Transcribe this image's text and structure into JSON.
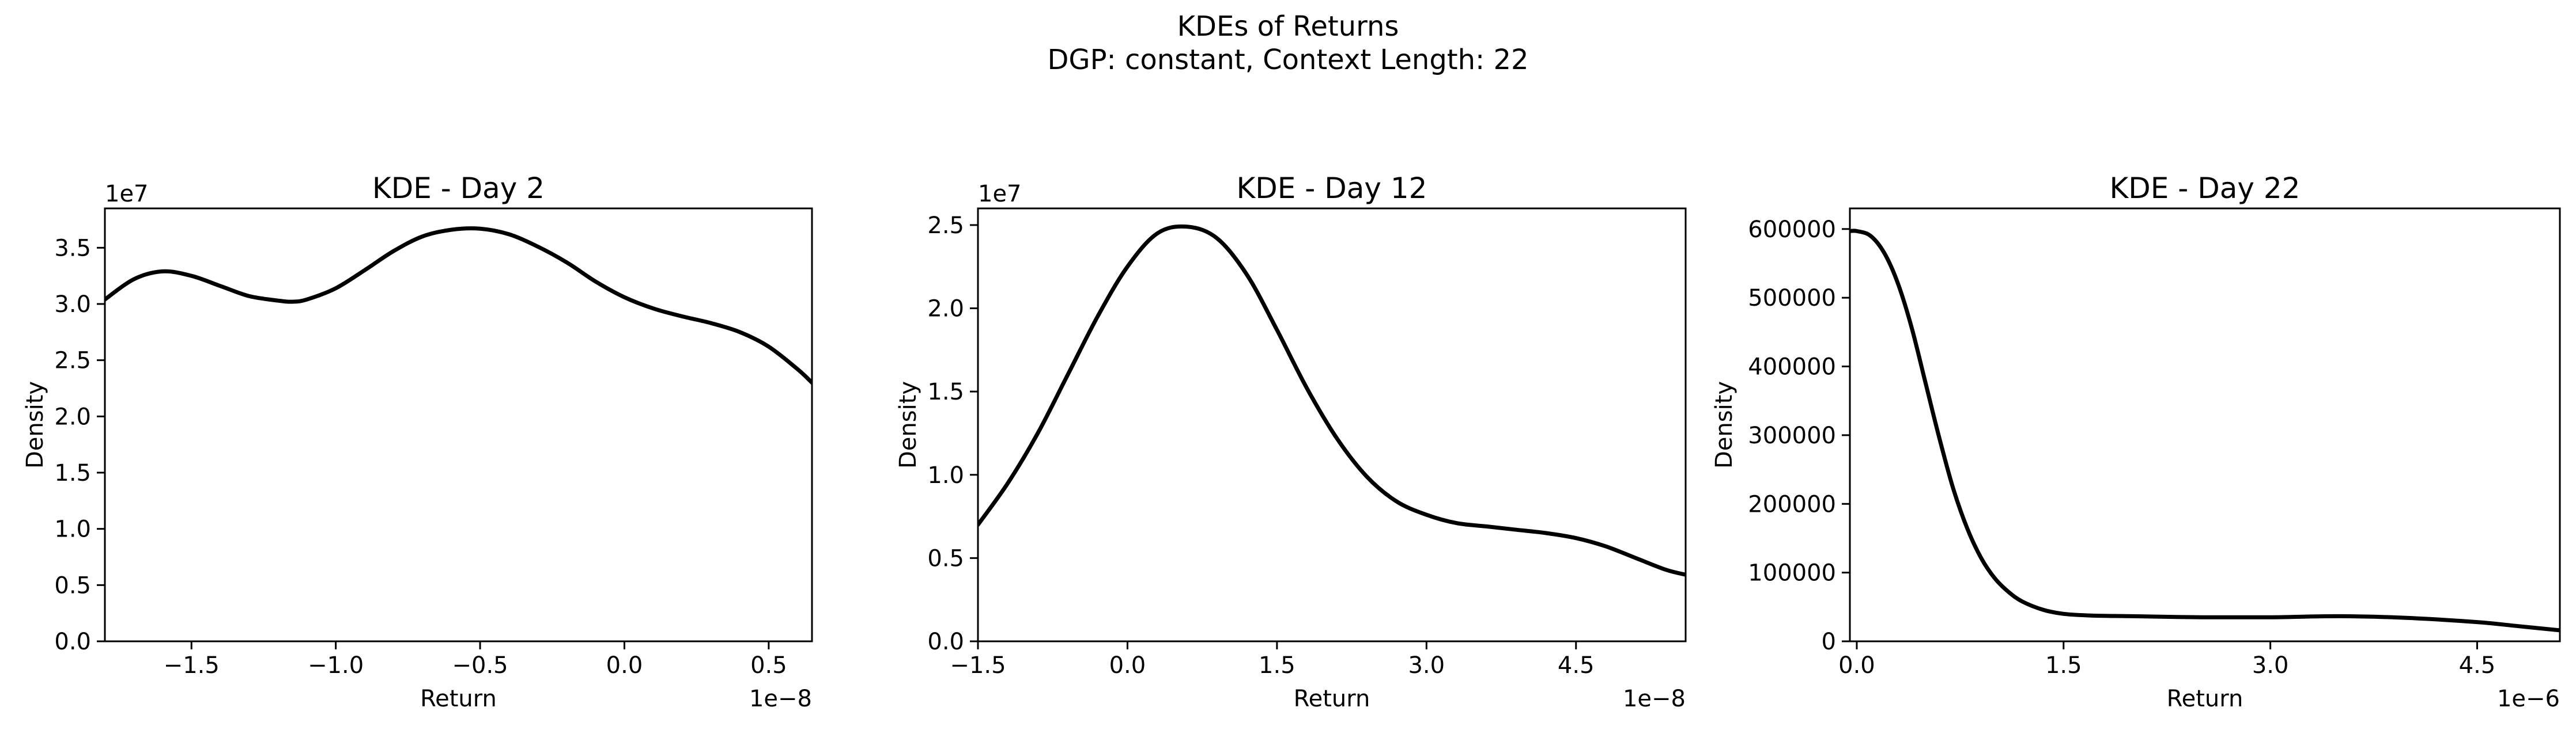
{
  "figure": {
    "title_line1": "KDEs of Returns",
    "title_line2": "DGP: constant, Context Length: 22"
  },
  "chart_data": [
    {
      "type": "line",
      "title": "KDE - Day 2",
      "xlabel": "Return",
      "ylabel": "Density",
      "x_offset_label": "1e−8",
      "y_offset_label": "1e7",
      "xlim": [
        -1.8,
        0.65
      ],
      "ylim": [
        0,
        3.85
      ],
      "xticks": [
        -1.5,
        -1.0,
        -0.5,
        0.0,
        0.5
      ],
      "xtick_labels": [
        "−1.5",
        "−1.0",
        "−0.5",
        "0.0",
        "0.5"
      ],
      "yticks": [
        0,
        0.5,
        1.0,
        1.5,
        2.0,
        2.5,
        3.0,
        3.5
      ],
      "ytick_labels": [
        "0.0",
        "0.5",
        "1.0",
        "1.5",
        "2.0",
        "2.5",
        "3.0",
        "3.5"
      ],
      "grid": false,
      "line_color": "#000000",
      "series": [
        {
          "x": [
            -1.8,
            -1.7,
            -1.6,
            -1.5,
            -1.4,
            -1.3,
            -1.2,
            -1.15,
            -1.1,
            -1.0,
            -0.9,
            -0.8,
            -0.7,
            -0.6,
            -0.5,
            -0.4,
            -0.3,
            -0.2,
            -0.1,
            0.0,
            0.1,
            0.2,
            0.3,
            0.4,
            0.5,
            0.6,
            0.65
          ],
          "y": [
            3.04,
            3.22,
            3.29,
            3.25,
            3.16,
            3.07,
            3.03,
            3.02,
            3.04,
            3.14,
            3.3,
            3.47,
            3.6,
            3.66,
            3.67,
            3.62,
            3.51,
            3.37,
            3.2,
            3.06,
            2.96,
            2.89,
            2.83,
            2.75,
            2.62,
            2.42,
            2.3
          ]
        }
      ]
    },
    {
      "type": "line",
      "title": "KDE - Day 12",
      "xlabel": "Return",
      "ylabel": "Density",
      "x_offset_label": "1e−8",
      "y_offset_label": "1e7",
      "xlim": [
        -1.5,
        5.6
      ],
      "ylim": [
        0,
        2.6
      ],
      "xticks": [
        -1.5,
        0.0,
        1.5,
        3.0,
        4.5
      ],
      "xtick_labels": [
        "−1.5",
        "0.0",
        "1.5",
        "3.0",
        "4.5"
      ],
      "yticks": [
        0,
        0.5,
        1.0,
        1.5,
        2.0,
        2.5
      ],
      "ytick_labels": [
        "0.0",
        "0.5",
        "1.0",
        "1.5",
        "2.0",
        "2.5"
      ],
      "grid": false,
      "line_color": "#000000",
      "series": [
        {
          "x": [
            -1.5,
            -1.2,
            -0.9,
            -0.6,
            -0.3,
            0.0,
            0.3,
            0.6,
            0.9,
            1.2,
            1.5,
            1.8,
            2.1,
            2.4,
            2.7,
            3.0,
            3.3,
            3.6,
            3.9,
            4.2,
            4.5,
            4.8,
            5.1,
            5.4,
            5.6
          ],
          "y": [
            0.7,
            0.95,
            1.25,
            1.6,
            1.95,
            2.25,
            2.45,
            2.49,
            2.42,
            2.2,
            1.87,
            1.52,
            1.22,
            0.99,
            0.84,
            0.76,
            0.71,
            0.69,
            0.67,
            0.65,
            0.62,
            0.57,
            0.5,
            0.43,
            0.4
          ]
        }
      ]
    },
    {
      "type": "line",
      "title": "KDE - Day 22",
      "xlabel": "Return",
      "ylabel": "Density",
      "x_offset_label": "1e−6",
      "xlim": [
        -0.05,
        5.1
      ],
      "ylim": [
        0,
        630000
      ],
      "xticks": [
        0.0,
        1.5,
        3.0,
        4.5
      ],
      "xtick_labels": [
        "0.0",
        "1.5",
        "3.0",
        "4.5"
      ],
      "yticks": [
        0,
        100000,
        200000,
        300000,
        400000,
        500000,
        600000
      ],
      "ytick_labels": [
        "0",
        "100000",
        "200000",
        "300000",
        "400000",
        "500000",
        "600000"
      ],
      "grid": false,
      "line_color": "#000000",
      "series": [
        {
          "x": [
            -0.05,
            0.0,
            0.1,
            0.2,
            0.3,
            0.4,
            0.5,
            0.6,
            0.7,
            0.8,
            0.9,
            1.0,
            1.1,
            1.2,
            1.35,
            1.5,
            1.7,
            2.0,
            2.5,
            3.0,
            3.5,
            4.0,
            4.5,
            4.8,
            5.1
          ],
          "y": [
            597000,
            597000,
            590000,
            565000,
            520000,
            455000,
            375000,
            295000,
            222000,
            165000,
            122000,
            92000,
            72000,
            58000,
            46000,
            40000,
            37500,
            36500,
            35000,
            35000,
            36500,
            34000,
            28000,
            22000,
            16000
          ]
        }
      ]
    }
  ]
}
